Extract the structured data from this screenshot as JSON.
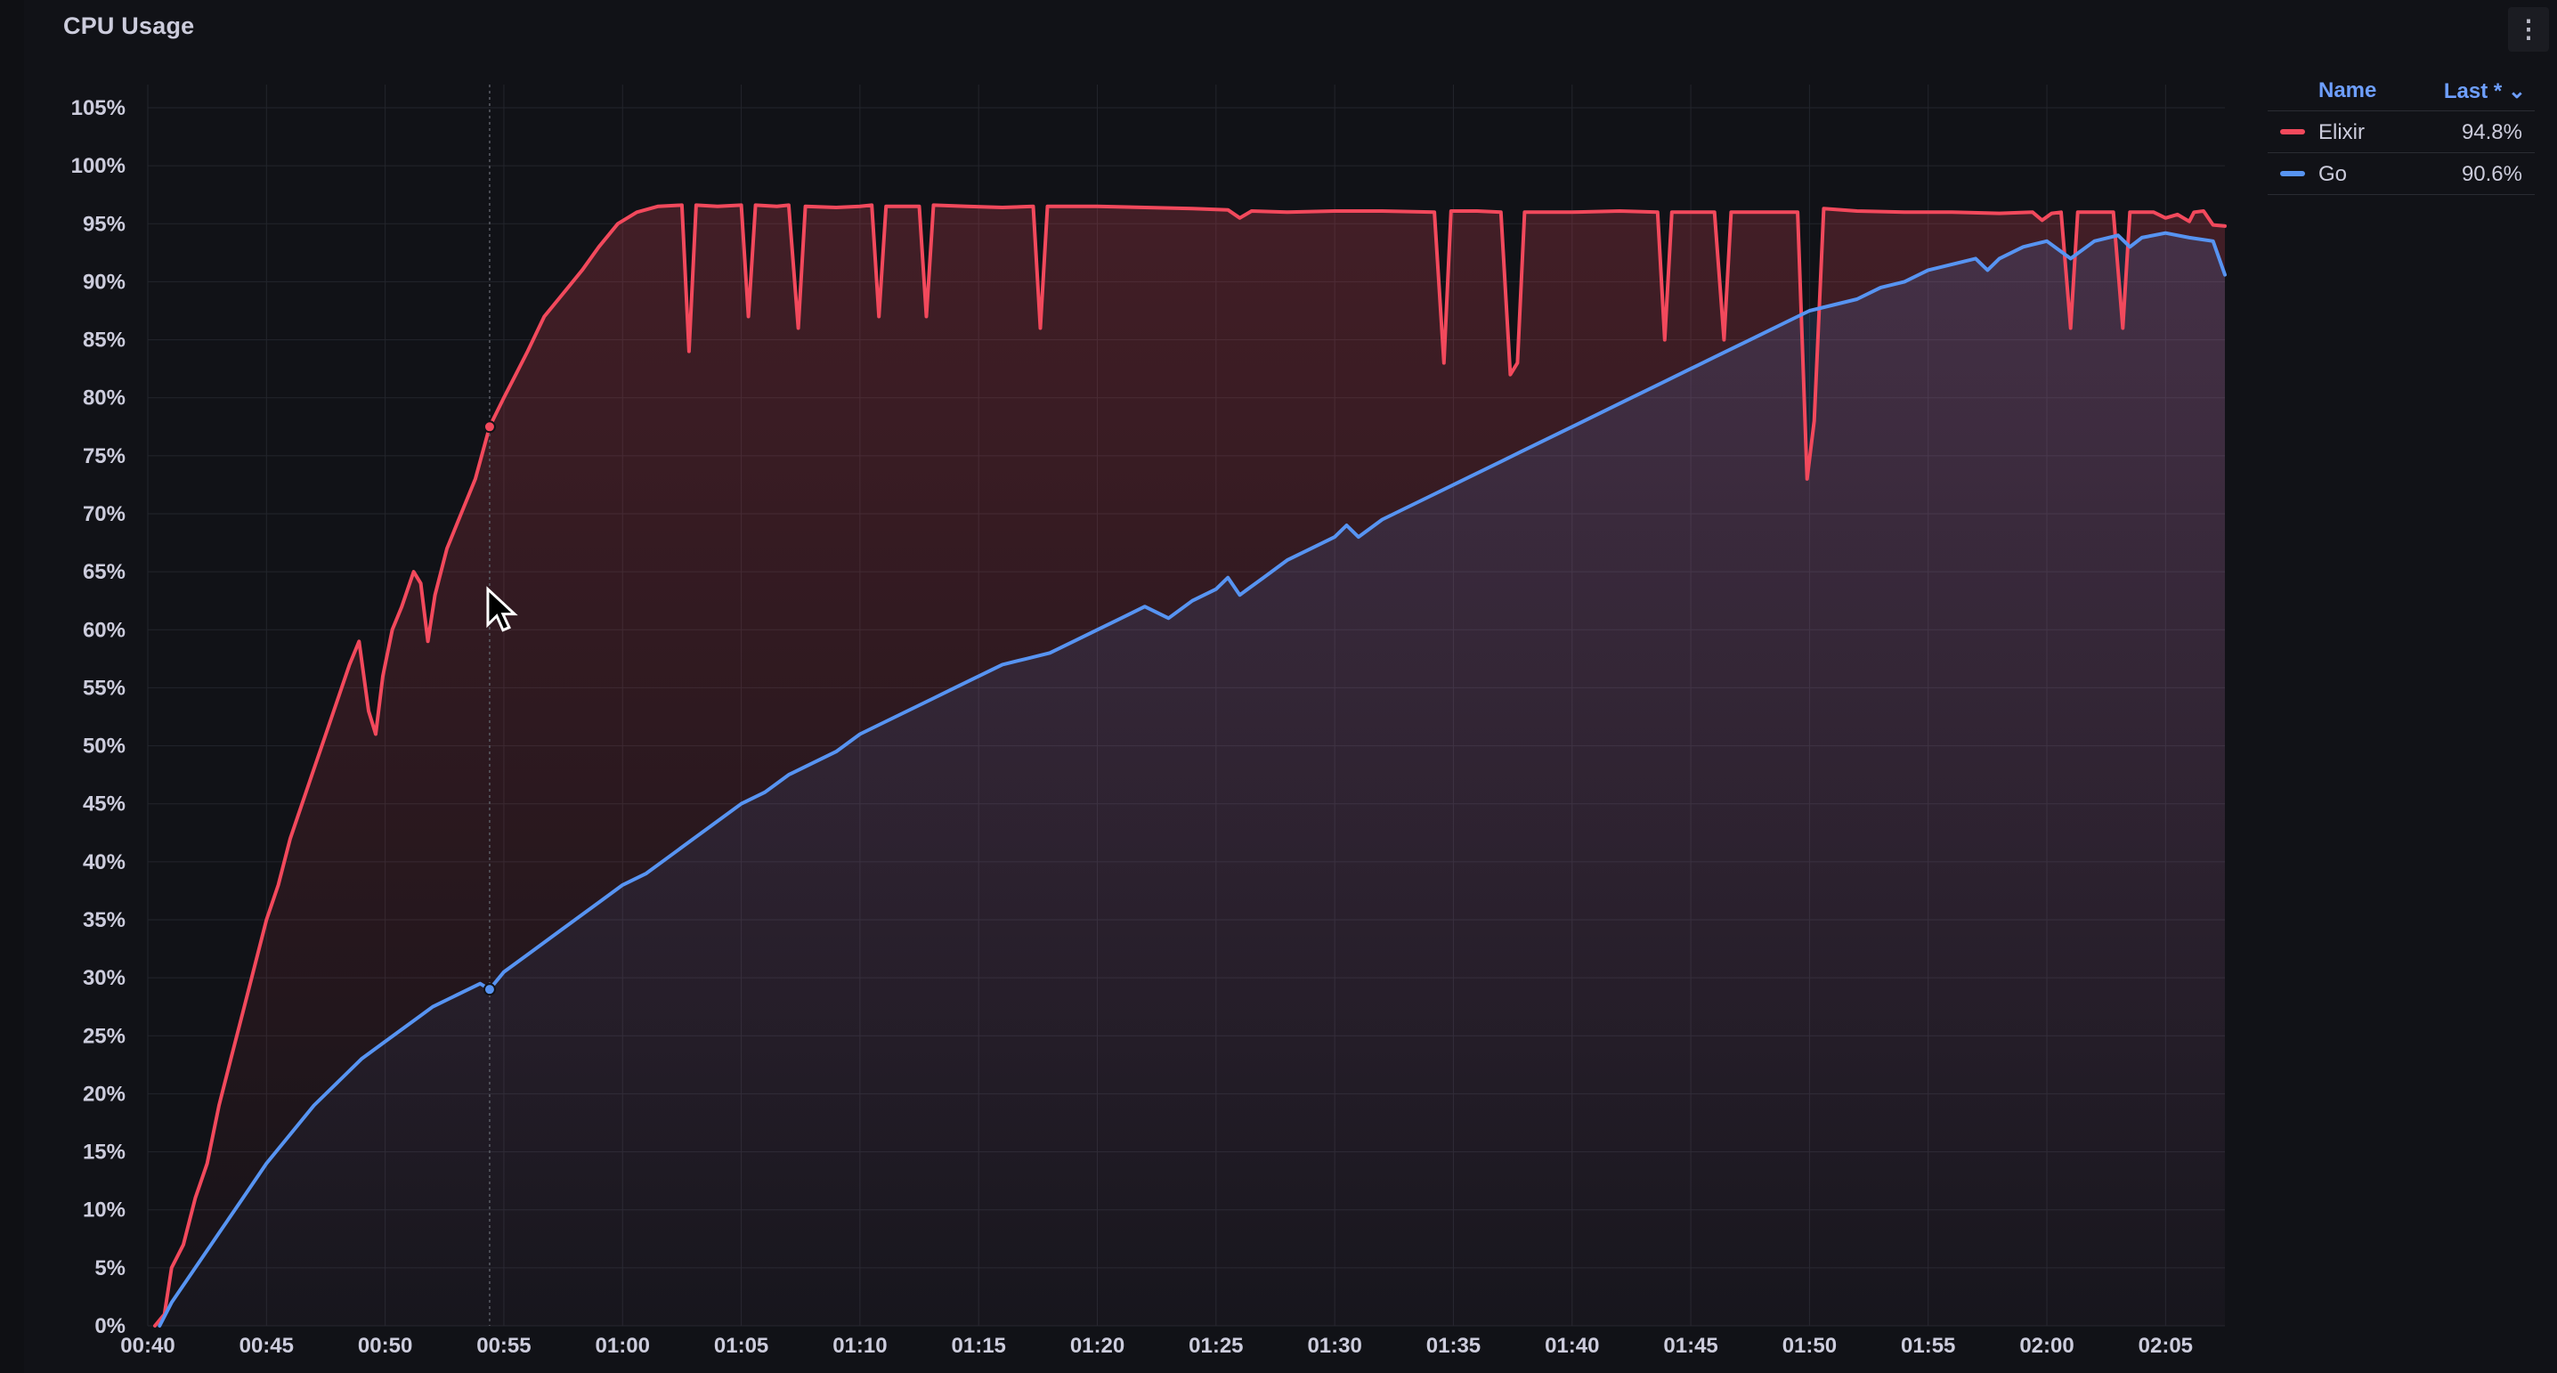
{
  "panel": {
    "title": "CPU Usage",
    "menu_icon": "vertical-ellipsis-icon"
  },
  "legend": {
    "name_header": "Name",
    "last_header": "Last * ⌄",
    "items": [
      {
        "name": "Elixir",
        "last": "94.8%",
        "color": "#f2495c"
      },
      {
        "name": "Go",
        "last": "90.6%",
        "color": "#5794f2"
      }
    ]
  },
  "chart_data": {
    "type": "line",
    "xlabel": "",
    "ylabel": "",
    "x_ticks": [
      "00:40",
      "00:45",
      "00:50",
      "00:55",
      "01:00",
      "01:05",
      "01:10",
      "01:15",
      "01:20",
      "01:25",
      "01:30",
      "01:35",
      "01:40",
      "01:45",
      "01:50",
      "01:55",
      "02:00",
      "02:05"
    ],
    "y_ticks": [
      "0%",
      "5%",
      "10%",
      "15%",
      "20%",
      "25%",
      "30%",
      "35%",
      "40%",
      "45%",
      "50%",
      "55%",
      "60%",
      "65%",
      "70%",
      "75%",
      "80%",
      "85%",
      "90%",
      "95%",
      "100%",
      "105%"
    ],
    "xlim_minutes": [
      40,
      127.5
    ],
    "ylim": [
      0,
      105
    ],
    "grid": true,
    "legend_position": "right",
    "hover_marker_minutes": 54.4,
    "series": [
      {
        "name": "Elixir",
        "color": "#f2495c",
        "points": [
          [
            40.3,
            0
          ],
          [
            40.7,
            1
          ],
          [
            41.0,
            5
          ],
          [
            41.5,
            7
          ],
          [
            42.0,
            11
          ],
          [
            42.5,
            14
          ],
          [
            43.0,
            19
          ],
          [
            43.5,
            23
          ],
          [
            44.0,
            27
          ],
          [
            44.5,
            31
          ],
          [
            45.0,
            35
          ],
          [
            45.5,
            38
          ],
          [
            46.0,
            42
          ],
          [
            46.5,
            45
          ],
          [
            47.0,
            48
          ],
          [
            47.5,
            51
          ],
          [
            48.0,
            54
          ],
          [
            48.5,
            57
          ],
          [
            48.9,
            59
          ],
          [
            49.3,
            53
          ],
          [
            49.6,
            51
          ],
          [
            49.9,
            56
          ],
          [
            50.3,
            60
          ],
          [
            50.7,
            62
          ],
          [
            51.2,
            65
          ],
          [
            51.5,
            64
          ],
          [
            51.8,
            59
          ],
          [
            52.1,
            63
          ],
          [
            52.6,
            67
          ],
          [
            53.2,
            70
          ],
          [
            53.8,
            73
          ],
          [
            54.4,
            77.5
          ],
          [
            55.0,
            80
          ],
          [
            55.5,
            82
          ],
          [
            56.0,
            84
          ],
          [
            56.7,
            87
          ],
          [
            57.5,
            89
          ],
          [
            58.3,
            91
          ],
          [
            59.0,
            93
          ],
          [
            59.8,
            95
          ],
          [
            60.6,
            96
          ],
          [
            61.5,
            96.5
          ],
          [
            62.5,
            96.6
          ],
          [
            62.8,
            84
          ],
          [
            63.1,
            96.6
          ],
          [
            64.0,
            96.5
          ],
          [
            65.0,
            96.6
          ],
          [
            65.3,
            87
          ],
          [
            65.6,
            96.6
          ],
          [
            66.5,
            96.5
          ],
          [
            67.0,
            96.6
          ],
          [
            67.4,
            86
          ],
          [
            67.7,
            96.5
          ],
          [
            69.0,
            96.4
          ],
          [
            70.0,
            96.5
          ],
          [
            70.5,
            96.6
          ],
          [
            70.8,
            87
          ],
          [
            71.1,
            96.5
          ],
          [
            72.0,
            96.5
          ],
          [
            72.5,
            96.5
          ],
          [
            72.8,
            87
          ],
          [
            73.1,
            96.6
          ],
          [
            74.5,
            96.5
          ],
          [
            76.0,
            96.4
          ],
          [
            77.3,
            96.5
          ],
          [
            77.6,
            86
          ],
          [
            77.9,
            96.5
          ],
          [
            80.0,
            96.5
          ],
          [
            82.0,
            96.4
          ],
          [
            84.0,
            96.3
          ],
          [
            85.5,
            96.2
          ],
          [
            86.0,
            95.5
          ],
          [
            86.5,
            96.1
          ],
          [
            88.0,
            96.0
          ],
          [
            90.0,
            96.1
          ],
          [
            92.0,
            96.1
          ],
          [
            94.2,
            96.0
          ],
          [
            94.6,
            83
          ],
          [
            94.9,
            96.1
          ],
          [
            96.0,
            96.1
          ],
          [
            97.0,
            96.0
          ],
          [
            97.4,
            82
          ],
          [
            97.7,
            83
          ],
          [
            98.0,
            96.0
          ],
          [
            100.0,
            96.0
          ],
          [
            102.0,
            96.1
          ],
          [
            103.6,
            96.0
          ],
          [
            103.9,
            85
          ],
          [
            104.2,
            96.0
          ],
          [
            106.0,
            96.0
          ],
          [
            106.4,
            85
          ],
          [
            106.7,
            96.0
          ],
          [
            108.0,
            96.0
          ],
          [
            109.5,
            96.0
          ],
          [
            109.9,
            73
          ],
          [
            110.2,
            78
          ],
          [
            110.6,
            96.3
          ],
          [
            112.0,
            96.1
          ],
          [
            114.0,
            96.0
          ],
          [
            116.0,
            96.0
          ],
          [
            118.0,
            95.9
          ],
          [
            119.4,
            96.0
          ],
          [
            119.8,
            95.3
          ],
          [
            120.2,
            95.9
          ],
          [
            120.6,
            96.0
          ],
          [
            121.0,
            86
          ],
          [
            121.3,
            96.0
          ],
          [
            122.8,
            96.0
          ],
          [
            123.2,
            86
          ],
          [
            123.5,
            96.0
          ],
          [
            124.5,
            96.0
          ],
          [
            125.0,
            95.5
          ],
          [
            125.5,
            95.8
          ],
          [
            126.0,
            95.2
          ],
          [
            126.2,
            96.0
          ],
          [
            126.6,
            96.1
          ],
          [
            127.0,
            94.9
          ],
          [
            127.5,
            94.8
          ]
        ]
      },
      {
        "name": "Go",
        "color": "#5794f2",
        "points": [
          [
            40.5,
            0
          ],
          [
            41.0,
            2
          ],
          [
            42.0,
            5
          ],
          [
            43.0,
            8
          ],
          [
            44.0,
            11
          ],
          [
            45.0,
            14
          ],
          [
            46.0,
            16.5
          ],
          [
            47.0,
            19
          ],
          [
            48.0,
            21
          ],
          [
            49.0,
            23
          ],
          [
            50.0,
            24.5
          ],
          [
            51.0,
            26
          ],
          [
            52.0,
            27.5
          ],
          [
            53.0,
            28.5
          ],
          [
            54.0,
            29.5
          ],
          [
            54.4,
            29
          ],
          [
            55.0,
            30.5
          ],
          [
            56.0,
            32
          ],
          [
            57.0,
            33.5
          ],
          [
            58.0,
            35
          ],
          [
            59.0,
            36.5
          ],
          [
            60.0,
            38
          ],
          [
            61.0,
            39
          ],
          [
            62.0,
            40.5
          ],
          [
            63.0,
            42
          ],
          [
            64.0,
            43.5
          ],
          [
            65.0,
            45
          ],
          [
            66.0,
            46
          ],
          [
            67.0,
            47.5
          ],
          [
            68.0,
            48.5
          ],
          [
            69.0,
            49.5
          ],
          [
            70.0,
            51
          ],
          [
            71.0,
            52
          ],
          [
            72.0,
            53
          ],
          [
            73.0,
            54
          ],
          [
            74.0,
            55
          ],
          [
            75.0,
            56
          ],
          [
            76.0,
            57
          ],
          [
            77.0,
            57.5
          ],
          [
            78.0,
            58
          ],
          [
            79.0,
            59
          ],
          [
            80.0,
            60
          ],
          [
            81.0,
            61
          ],
          [
            82.0,
            62
          ],
          [
            83.0,
            61
          ],
          [
            84.0,
            62.5
          ],
          [
            85.0,
            63.5
          ],
          [
            85.5,
            64.5
          ],
          [
            86.0,
            63
          ],
          [
            87.0,
            64.5
          ],
          [
            88.0,
            66
          ],
          [
            89.0,
            67
          ],
          [
            90.0,
            68
          ],
          [
            90.5,
            69
          ],
          [
            91.0,
            68
          ],
          [
            92.0,
            69.5
          ],
          [
            93.0,
            70.5
          ],
          [
            94.0,
            71.5
          ],
          [
            95.0,
            72.5
          ],
          [
            96.0,
            73.5
          ],
          [
            97.0,
            74.5
          ],
          [
            98.0,
            75.5
          ],
          [
            99.0,
            76.5
          ],
          [
            100.0,
            77.5
          ],
          [
            101.0,
            78.5
          ],
          [
            102.0,
            79.5
          ],
          [
            103.0,
            80.5
          ],
          [
            104.0,
            81.5
          ],
          [
            105.0,
            82.5
          ],
          [
            106.0,
            83.5
          ],
          [
            107.0,
            84.5
          ],
          [
            108.0,
            85.5
          ],
          [
            109.0,
            86.5
          ],
          [
            110.0,
            87.5
          ],
          [
            111.0,
            88
          ],
          [
            112.0,
            88.5
          ],
          [
            113.0,
            89.5
          ],
          [
            114.0,
            90
          ],
          [
            115.0,
            91
          ],
          [
            116.0,
            91.5
          ],
          [
            117.0,
            92
          ],
          [
            117.5,
            91
          ],
          [
            118.0,
            92
          ],
          [
            119.0,
            93
          ],
          [
            120.0,
            93.5
          ],
          [
            121.0,
            92
          ],
          [
            122.0,
            93.5
          ],
          [
            123.0,
            94
          ],
          [
            123.5,
            93
          ],
          [
            124.0,
            93.8
          ],
          [
            125.0,
            94.2
          ],
          [
            126.0,
            93.8
          ],
          [
            127.0,
            93.5
          ],
          [
            127.5,
            90.6
          ]
        ]
      }
    ]
  }
}
